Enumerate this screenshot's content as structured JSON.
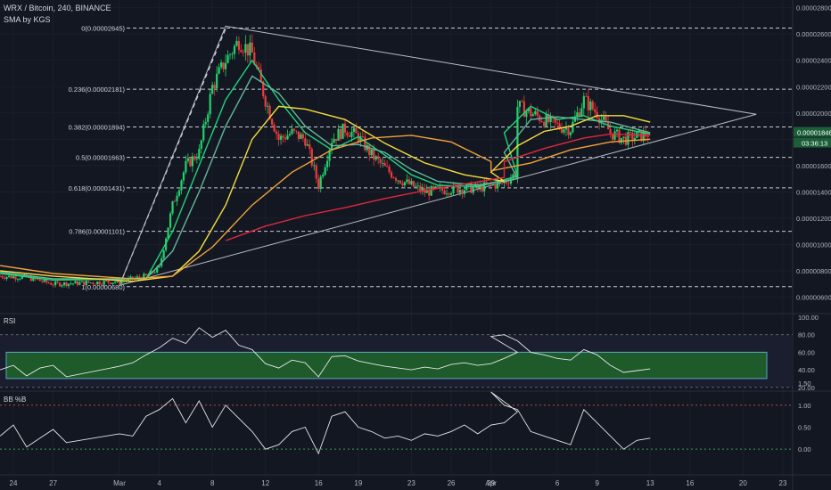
{
  "header": {
    "symbol_line": "WRX / Bitcoin, 240, BINANCE",
    "indicator_line": "SMA by KGS"
  },
  "colors": {
    "background": "#131722",
    "up_candle": "#22d36b",
    "down_candle": "#ef3b3b",
    "sma_fast": "#1fd47a",
    "sma_mid": "#62b89a",
    "sma_yellow": "#f5de3e",
    "sma_orange": "#f2a23a",
    "sma_red": "#e2273c",
    "rsi_band": "#1f5a2b",
    "rsi_band_border": "#5aa7c7",
    "triangle": "#b9bcc6"
  },
  "chart_data": [
    {
      "type": "line",
      "panel": "price",
      "title": "WRX / Bitcoin, 240, BINANCE",
      "price_range": [
        5.7e-06,
        2.757e-05
      ],
      "price_ticks": [
        "0.00002800",
        "0.00002600",
        "0.00002400",
        "0.00002200",
        "0.00002000",
        "0.00001800",
        "0.00001600",
        "0.00001400",
        "0.00001200",
        "0.00001000",
        "0.00000800",
        "0.00000600"
      ],
      "price_tick_values": [
        2.8e-05,
        2.6e-05,
        2.4e-05,
        2.2e-05,
        2e-05,
        1.8e-05,
        1.6e-05,
        1.4e-05,
        1.2e-05,
        1e-05,
        8e-06,
        6e-06
      ],
      "x_ticks": [
        "24",
        "27",
        "Mar",
        "4",
        "8",
        "12",
        "16",
        "19",
        "23",
        "26",
        "29",
        "Apr",
        "6",
        "9",
        "13",
        "16",
        "20",
        "23"
      ],
      "last_price_label": "0.00001846",
      "last_price": 1.846e-05,
      "countdown_label": "03:36:13",
      "fib_levels": [
        {
          "label": "0(0.00002645)",
          "value": 2.645e-05
        },
        {
          "label": "0.236(0.00002181)",
          "value": 2.181e-05
        },
        {
          "label": "0.382(0.00001894)",
          "value": 1.894e-05
        },
        {
          "label": "0.5(0.00001663)",
          "value": 1.663e-05
        },
        {
          "label": "0.618(0.00001431)",
          "value": 1.431e-05
        },
        {
          "label": "0.786(0.00001101)",
          "value": 1.101e-05
        },
        {
          "label": "1(0.00000680)",
          "value": 6.8e-06
        }
      ],
      "price_path": [
        [
          "Feb 23",
          7.6e-06
        ],
        [
          "Feb 25",
          7.5e-06
        ],
        [
          "Feb 27",
          7e-06
        ],
        [
          "Mar 1",
          7.2e-06
        ],
        [
          "Mar 3",
          7.6e-06
        ],
        [
          "Mar 4",
          8.2e-06
        ],
        [
          "Mar 5",
          1.3e-05
        ],
        [
          "Mar 6",
          1.6e-05
        ],
        [
          "Mar 7",
          1.7e-05
        ],
        [
          "Mar 8",
          2.2e-05
        ],
        [
          "Mar 9",
          2.4e-05
        ],
        [
          "Mar 10",
          2.55e-05
        ],
        [
          "Mar 11",
          2.45e-05
        ],
        [
          "Mar 12",
          2.1e-05
        ],
        [
          "Mar 13",
          1.8e-05
        ],
        [
          "Mar 14",
          1.85e-05
        ],
        [
          "Mar 15",
          1.8e-05
        ],
        [
          "Mar 16",
          1.45e-05
        ],
        [
          "Mar 17",
          1.8e-05
        ],
        [
          "Mar 18",
          1.88e-05
        ],
        [
          "Mar 19",
          1.82e-05
        ],
        [
          "Mar 20",
          1.68e-05
        ],
        [
          "Mar 21",
          1.58e-05
        ],
        [
          "Mar 22",
          1.5e-05
        ],
        [
          "Mar 24",
          1.4e-05
        ],
        [
          "Mar 26",
          1.42e-05
        ],
        [
          "Mar 28",
          1.43e-05
        ],
        [
          "Mar 30",
          1.47e-05
        ],
        [
          "Mar 31",
          1.55e-05
        ],
        [
          "Apr 1",
          1.75e-05
        ],
        [
          "Apr 2",
          2.15e-05
        ],
        [
          "Apr 3",
          2.05e-05
        ],
        [
          "Apr 4",
          2e-05
        ],
        [
          "Apr 5",
          1.95e-05
        ],
        [
          "Apr 6",
          1.9e-05
        ],
        [
          "Apr 7",
          1.88e-05
        ],
        [
          "Apr 8",
          2.1e-05
        ],
        [
          "Apr 9",
          2e-05
        ],
        [
          "Apr 10",
          1.85e-05
        ],
        [
          "Apr 11",
          1.8e-05
        ],
        [
          "Apr 12",
          1.82e-05
        ],
        [
          "Apr 13",
          1.846e-05
        ]
      ],
      "triangle": {
        "top": [
          "Mar 9",
          2.66e-05
        ],
        "bottom": [
          "Mar 1",
          6.9e-06
        ],
        "apex": [
          "Apr 21",
          1.99e-05
        ]
      },
      "fib_drawing_line": {
        "from": [
          "Mar 1",
          6.9e-06
        ],
        "to": [
          "Mar 9",
          2.64e-05
        ]
      },
      "series": [
        {
          "color": "#1fd47a",
          "values": [
            [
              "Feb 23",
              7.8e-06
            ],
            [
              "Feb 27",
              7.3e-06
            ],
            [
              "Mar 3",
              7.4e-06
            ],
            [
              "Mar 5",
              1.1e-05
            ],
            [
              "Mar 7",
              1.6e-05
            ],
            [
              "Mar 9",
              2.1e-05
            ],
            [
              "Mar 11",
              2.4e-05
            ],
            [
              "Mar 13",
              2.1e-05
            ],
            [
              "Mar 15",
              1.85e-05
            ],
            [
              "Mar 17",
              1.72e-05
            ],
            [
              "Mar 19",
              1.82e-05
            ],
            [
              "Mar 21",
              1.68e-05
            ],
            [
              "Mar 23",
              1.53e-05
            ],
            [
              "Mar 25",
              1.45e-05
            ],
            [
              "Mar 28",
              1.44e-05
            ],
            [
              "Mar 31",
              1.52e-05
            ],
            [
              "Apr 2",
              1.85e-05
            ],
            [
              "Apr 4",
              2.05e-05
            ],
            [
              "Apr 6",
              1.95e-05
            ],
            [
              "Apr 8",
              1.98e-05
            ],
            [
              "Apr 10",
              1.9e-05
            ],
            [
              "Apr 13",
              1.84e-05
            ]
          ]
        },
        {
          "color": "#62b89a",
          "values": [
            [
              "Feb 23",
              7.9e-06
            ],
            [
              "Feb 27",
              7.4e-06
            ],
            [
              "Mar 3",
              7.4e-06
            ],
            [
              "Mar 5",
              9.5e-06
            ],
            [
              "Mar 7",
              1.4e-05
            ],
            [
              "Mar 9",
              1.9e-05
            ],
            [
              "Mar 11",
              2.28e-05
            ],
            [
              "Mar 13",
              2.15e-05
            ],
            [
              "Mar 15",
              1.9e-05
            ],
            [
              "Mar 17",
              1.75e-05
            ],
            [
              "Mar 19",
              1.76e-05
            ],
            [
              "Mar 21",
              1.7e-05
            ],
            [
              "Mar 23",
              1.57e-05
            ],
            [
              "Mar 25",
              1.48e-05
            ],
            [
              "Mar 28",
              1.45e-05
            ],
            [
              "Mar 31",
              1.5e-05
            ],
            [
              "Apr 2",
              1.7e-05
            ],
            [
              "Apr 4",
              1.95e-05
            ],
            [
              "Apr 6",
              1.97e-05
            ],
            [
              "Apr 8",
              1.95e-05
            ],
            [
              "Apr 10",
              1.93e-05
            ],
            [
              "Apr 13",
              1.85e-05
            ]
          ]
        },
        {
          "color": "#f5de3e",
          "values": [
            [
              "Feb 23",
              8e-06
            ],
            [
              "Feb 27",
              7.6e-06
            ],
            [
              "Mar 2",
              7.2e-06
            ],
            [
              "Mar 5",
              7.6e-06
            ],
            [
              "Mar 7",
              9.5e-06
            ],
            [
              "Mar 9",
              1.3e-05
            ],
            [
              "Mar 11",
              1.8e-05
            ],
            [
              "Mar 13",
              2.05e-05
            ],
            [
              "Mar 15",
              2.03e-05
            ],
            [
              "Mar 18",
              1.95e-05
            ],
            [
              "Mar 21",
              1.77e-05
            ],
            [
              "Mar 24",
              1.62e-05
            ],
            [
              "Mar 27",
              1.53e-05
            ],
            [
              "Mar 30",
              1.48e-05
            ],
            [
              "Apr 1",
              1.55e-05
            ],
            [
              "Apr 3",
              1.75e-05
            ],
            [
              "Apr 5",
              1.86e-05
            ],
            [
              "Apr 7",
              1.9e-05
            ],
            [
              "Apr 9",
              1.98e-05
            ],
            [
              "Apr 11",
              1.98e-05
            ],
            [
              "Apr 13",
              1.93e-05
            ]
          ]
        },
        {
          "color": "#f2a23a",
          "values": [
            [
              "Feb 23",
              8.4e-06
            ],
            [
              "Feb 27",
              7.8e-06
            ],
            [
              "Mar 2",
              7.4e-06
            ],
            [
              "Mar 5",
              7.6e-06
            ],
            [
              "Mar 8",
              9.8e-06
            ],
            [
              "Mar 11",
              1.3e-05
            ],
            [
              "Mar 14",
              1.55e-05
            ],
            [
              "Mar 17",
              1.72e-05
            ],
            [
              "Mar 20",
              1.81e-05
            ],
            [
              "Mar 23",
              1.83e-05
            ],
            [
              "Mar 26",
              1.78e-05
            ],
            [
              "Mar 29",
              1.63e-05
            ],
            [
              "Apr 1",
              1.56e-05
            ],
            [
              "Apr 4",
              1.62e-05
            ],
            [
              "Apr 7",
              1.72e-05
            ],
            [
              "Apr 10",
              1.78e-05
            ],
            [
              "Apr 13",
              1.8e-05
            ]
          ]
        },
        {
          "color": "#e2273c",
          "values": [
            [
              "Mar 9",
              1.03e-05
            ],
            [
              "Mar 12",
              1.14e-05
            ],
            [
              "Mar 15",
              1.22e-05
            ],
            [
              "Mar 18",
              1.28e-05
            ],
            [
              "Mar 21",
              1.35e-05
            ],
            [
              "Mar 24",
              1.41e-05
            ],
            [
              "Mar 27",
              1.46e-05
            ],
            [
              "Mar 30",
              1.51e-05
            ],
            [
              "Apr 2",
              1.63e-05
            ],
            [
              "Apr 5",
              1.73e-05
            ],
            [
              "Apr 8",
              1.81e-05
            ],
            [
              "Apr 10",
              1.84e-05
            ],
            [
              "Apr 13",
              1.83e-05
            ]
          ]
        }
      ]
    },
    {
      "type": "line",
      "panel": "rsi",
      "title": "RSI",
      "ylim": [
        16.7,
        102
      ],
      "y_ticks": [
        "100.00",
        "80.00",
        "60.00",
        "40.00",
        "20.00"
      ],
      "y_tick_values": [
        100,
        80,
        60,
        40,
        20
      ],
      "band": [
        30,
        60
      ],
      "dashed_levels": [
        80,
        20
      ],
      "values": [
        [
          "Feb 23",
          40
        ],
        [
          "Feb 24",
          45
        ],
        [
          "Feb 25",
          33
        ],
        [
          "Feb 26",
          42
        ],
        [
          "Feb 27",
          45
        ],
        [
          "Feb 28",
          32
        ],
        [
          "Mar 1",
          44
        ],
        [
          "Mar 2",
          48
        ],
        [
          "Mar 3",
          57
        ],
        [
          "Mar 4",
          65
        ],
        [
          "Mar 5",
          76
        ],
        [
          "Mar 6",
          70
        ],
        [
          "Mar 7",
          88
        ],
        [
          "Mar 8",
          77
        ],
        [
          "Mar 9",
          85
        ],
        [
          "Mar 10",
          68
        ],
        [
          "Mar 11",
          63
        ],
        [
          "Mar 12",
          47
        ],
        [
          "Mar 13",
          42
        ],
        [
          "Mar 14",
          51
        ],
        [
          "Mar 15",
          48
        ],
        [
          "Mar 16",
          32
        ],
        [
          "Mar 17",
          55
        ],
        [
          "Mar 18",
          56
        ],
        [
          "Mar 19",
          50
        ],
        [
          "Mar 20",
          47
        ],
        [
          "Mar 21",
          44
        ],
        [
          "Mar 22",
          42
        ],
        [
          "Mar 23",
          40
        ],
        [
          "Mar 24",
          43
        ],
        [
          "Mar 25",
          41
        ],
        [
          "Mar 26",
          46
        ],
        [
          "Mar 27",
          48
        ],
        [
          "Mar 28",
          45
        ],
        [
          "Mar 29",
          47
        ],
        [
          "Mar 30",
          53
        ],
        [
          "Mar 31",
          60
        ],
        [
          "Apr 1",
          78
        ],
        [
          "Apr 2",
          80
        ],
        [
          "Apr 3",
          73
        ],
        [
          "Apr 4",
          60
        ],
        [
          "Apr 5",
          57
        ],
        [
          "Apr 6",
          53
        ],
        [
          "Apr 7",
          51
        ],
        [
          "Apr 8",
          63
        ],
        [
          "Apr 9",
          57
        ],
        [
          "Apr 10",
          45
        ],
        [
          "Apr 11",
          37
        ],
        [
          "Apr 12",
          39
        ],
        [
          "Apr 13",
          41
        ]
      ]
    },
    {
      "type": "line",
      "panel": "bbpercentb",
      "title": "BB %B",
      "ylim": [
        -0.28,
        1.3
      ],
      "y_ticks": [
        "1.50",
        "1.00",
        "0.50",
        "0.00"
      ],
      "y_tick_values": [
        1.5,
        1,
        0.5,
        0
      ],
      "dashed_levels": [
        1,
        0
      ],
      "values": [
        [
          "Feb 23",
          0.3
        ],
        [
          "Feb 24",
          0.55
        ],
        [
          "Feb 25",
          0.05
        ],
        [
          "Feb 26",
          0.25
        ],
        [
          "Feb 27",
          0.45
        ],
        [
          "Feb 28",
          0.15
        ],
        [
          "Mar 1",
          0.35
        ],
        [
          "Mar 2",
          0.3
        ],
        [
          "Mar 3",
          0.75
        ],
        [
          "Mar 4",
          0.9
        ],
        [
          "Mar 5",
          1.15
        ],
        [
          "Mar 6",
          0.6
        ],
        [
          "Mar 7",
          1.1
        ],
        [
          "Mar 8",
          0.5
        ],
        [
          "Mar 9",
          1.0
        ],
        [
          "Mar 10",
          0.7
        ],
        [
          "Mar 11",
          0.4
        ],
        [
          "Mar 12",
          0.0
        ],
        [
          "Mar 13",
          0.1
        ],
        [
          "Mar 14",
          0.4
        ],
        [
          "Mar 15",
          0.5
        ],
        [
          "Mar 16",
          -0.1
        ],
        [
          "Mar 17",
          0.75
        ],
        [
          "Mar 18",
          0.85
        ],
        [
          "Mar 19",
          0.5
        ],
        [
          "Mar 20",
          0.4
        ],
        [
          "Mar 21",
          0.25
        ],
        [
          "Mar 22",
          0.3
        ],
        [
          "Mar 23",
          0.2
        ],
        [
          "Mar 24",
          0.35
        ],
        [
          "Mar 25",
          0.3
        ],
        [
          "Mar 26",
          0.4
        ],
        [
          "Mar 27",
          0.55
        ],
        [
          "Mar 28",
          0.35
        ],
        [
          "Mar 29",
          0.55
        ],
        [
          "Mar 30",
          0.6
        ],
        [
          "Mar 31",
          0.85
        ],
        [
          "Apr 1",
          1.3
        ],
        [
          "Apr 2",
          1.0
        ],
        [
          "Apr 3",
          0.9
        ],
        [
          "Apr 4",
          0.4
        ],
        [
          "Apr 5",
          0.3
        ],
        [
          "Apr 6",
          0.2
        ],
        [
          "Apr 7",
          0.1
        ],
        [
          "Apr 8",
          0.9
        ],
        [
          "Apr 9",
          0.6
        ],
        [
          "Apr 10",
          0.3
        ],
        [
          "Apr 11",
          0.0
        ],
        [
          "Apr 12",
          0.2
        ],
        [
          "Apr 13",
          0.25
        ]
      ]
    }
  ]
}
